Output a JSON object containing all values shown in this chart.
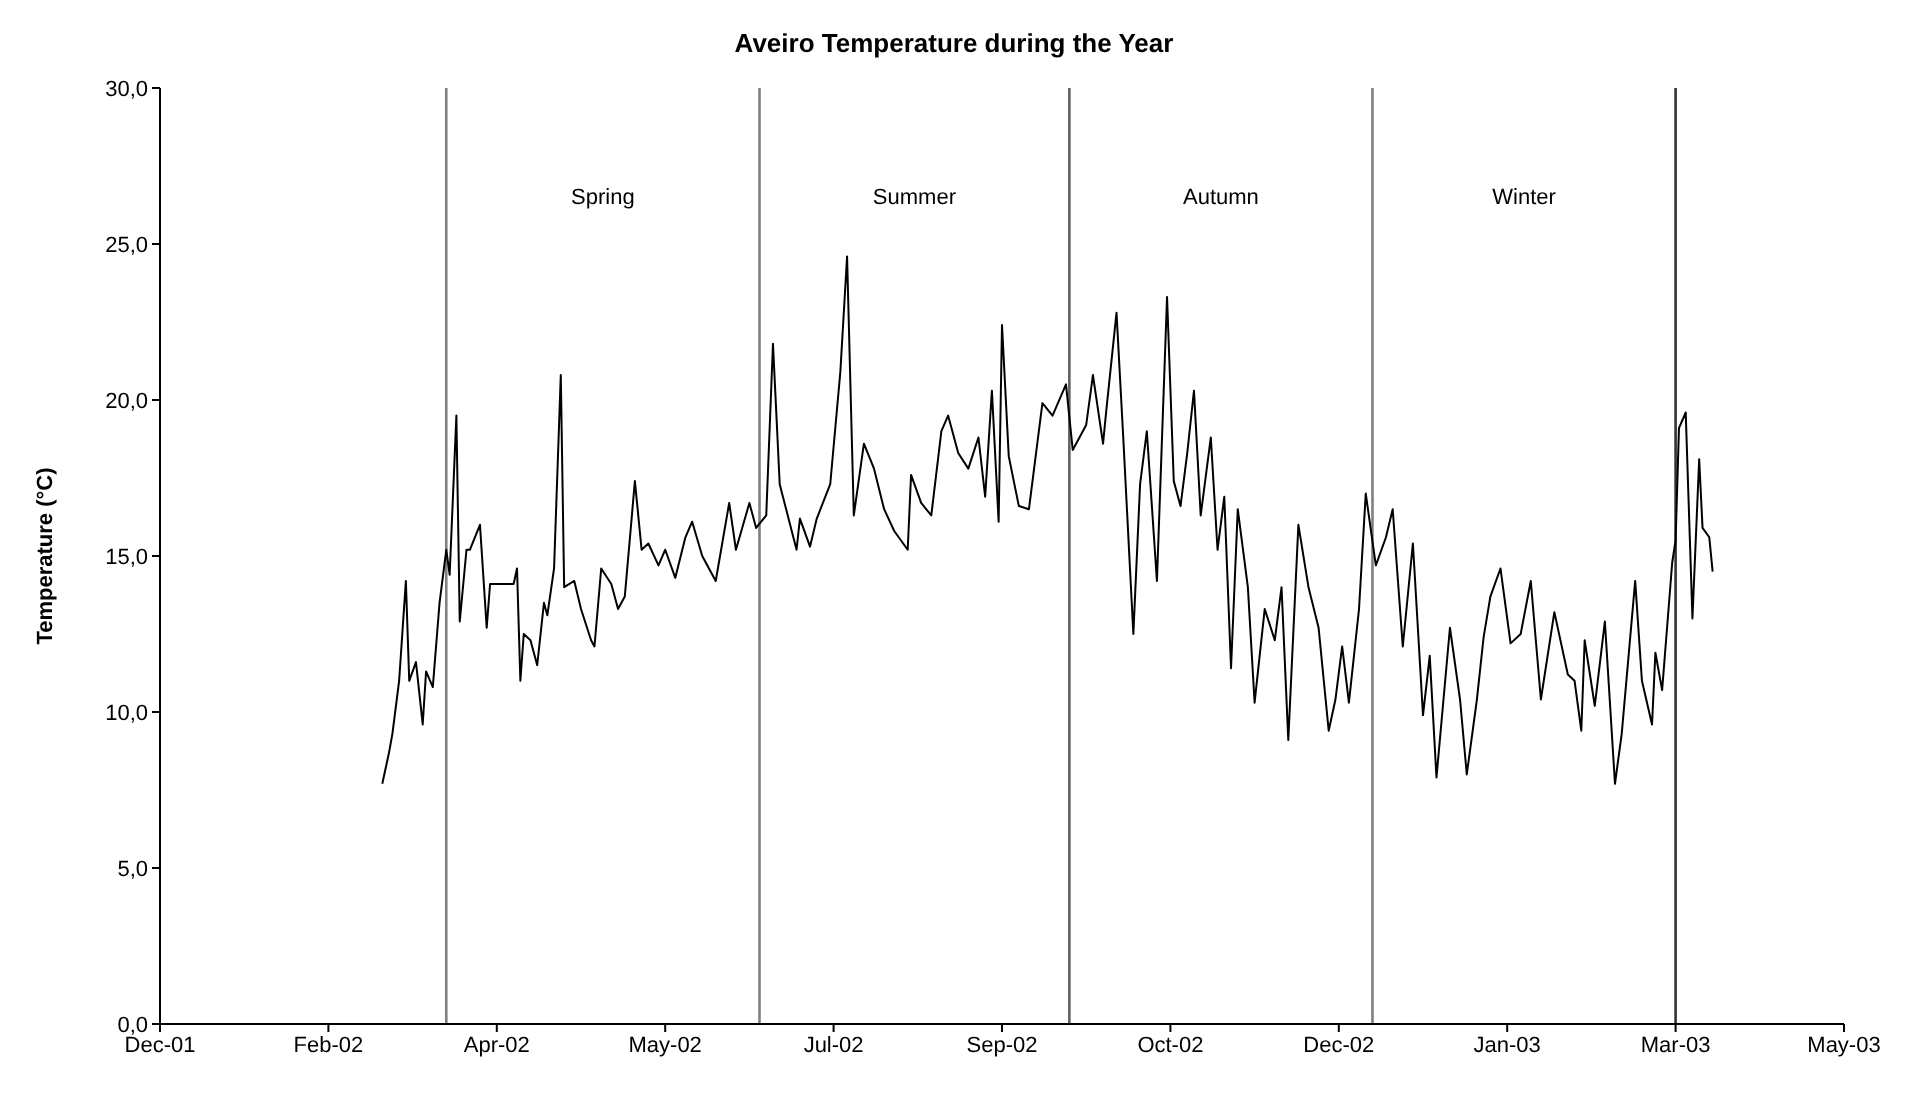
{
  "chart_data": {
    "type": "line",
    "title": "Aveiro Temperature during the Year",
    "ylabel": "Temperature (°C)",
    "x": [
      "2002-03-02",
      "2002-03-04",
      "2002-03-05",
      "2002-03-07",
      "2002-03-09",
      "2002-03-10",
      "2002-03-12",
      "2002-03-14",
      "2002-03-15",
      "2002-03-17",
      "2002-03-19",
      "2002-03-21",
      "2002-03-22",
      "2002-03-24",
      "2002-03-25",
      "2002-03-27",
      "2002-03-28",
      "2002-03-31",
      "2002-04-02",
      "2002-04-03",
      "2002-04-10",
      "2002-04-11",
      "2002-04-12",
      "2002-04-13",
      "2002-04-15",
      "2002-04-17",
      "2002-04-19",
      "2002-04-20",
      "2002-04-22",
      "2002-04-24",
      "2002-04-25",
      "2002-04-28",
      "2002-04-30",
      "2002-05-03",
      "2002-05-04",
      "2002-05-06",
      "2002-05-09",
      "2002-05-11",
      "2002-05-13",
      "2002-05-16",
      "2002-05-18",
      "2002-05-20",
      "2002-05-23",
      "2002-05-25",
      "2002-05-28",
      "2002-05-31",
      "2002-06-02",
      "2002-06-05",
      "2002-06-09",
      "2002-06-13",
      "2002-06-15",
      "2002-06-19",
      "2002-06-21",
      "2002-06-24",
      "2002-06-26",
      "2002-06-28",
      "2002-07-03",
      "2002-07-04",
      "2002-07-07",
      "2002-07-09",
      "2002-07-13",
      "2002-07-16",
      "2002-07-18",
      "2002-07-20",
      "2002-07-23",
      "2002-07-26",
      "2002-07-29",
      "2002-08-01",
      "2002-08-05",
      "2002-08-06",
      "2002-08-09",
      "2002-08-12",
      "2002-08-15",
      "2002-08-17",
      "2002-08-20",
      "2002-08-23",
      "2002-08-26",
      "2002-08-28",
      "2002-08-30",
      "2002-09-01",
      "2002-09-02",
      "2002-09-04",
      "2002-09-07",
      "2002-09-10",
      "2002-09-12",
      "2002-09-14",
      "2002-09-17",
      "2002-09-21",
      "2002-09-23",
      "2002-09-27",
      "2002-09-29",
      "2002-10-02",
      "2002-10-03",
      "2002-10-06",
      "2002-10-08",
      "2002-10-11",
      "2002-10-13",
      "2002-10-15",
      "2002-10-18",
      "2002-10-21",
      "2002-10-23",
      "2002-10-25",
      "2002-10-27",
      "2002-10-29",
      "2002-10-31",
      "2002-11-03",
      "2002-11-05",
      "2002-11-07",
      "2002-11-09",
      "2002-11-11",
      "2002-11-14",
      "2002-11-16",
      "2002-11-19",
      "2002-11-22",
      "2002-11-24",
      "2002-11-26",
      "2002-11-29",
      "2002-12-02",
      "2002-12-05",
      "2002-12-08",
      "2002-12-10",
      "2002-12-12",
      "2002-12-14",
      "2002-12-17",
      "2002-12-19",
      "2002-12-22",
      "2002-12-25",
      "2002-12-27",
      "2002-12-30",
      "2003-01-02",
      "2003-01-05",
      "2003-01-07",
      "2003-01-09",
      "2003-01-13",
      "2003-01-16",
      "2003-01-18",
      "2003-01-21",
      "2003-01-23",
      "2003-01-25",
      "2003-01-28",
      "2003-01-31",
      "2003-02-03",
      "2003-02-06",
      "2003-02-09",
      "2003-02-13",
      "2003-02-17",
      "2003-02-19",
      "2003-02-21",
      "2003-02-22",
      "2003-02-25",
      "2003-02-28",
      "2003-03-03",
      "2003-03-05",
      "2003-03-09",
      "2003-03-11",
      "2003-03-14",
      "2003-03-15",
      "2003-03-17",
      "2003-03-20",
      "2003-03-21",
      "2003-03-22",
      "2003-03-24",
      "2003-03-26",
      "2003-03-28",
      "2003-03-29",
      "2003-03-31",
      "2003-04-01"
    ],
    "series": [
      {
        "color": "#000000",
        "values": [
          7.7,
          8.7,
          9.3,
          11.0,
          14.2,
          11.0,
          11.6,
          9.6,
          11.3,
          10.8,
          13.5,
          15.2,
          14.4,
          19.5,
          12.9,
          15.2,
          15.2,
          16.0,
          12.7,
          14.1,
          14.1,
          14.6,
          11.0,
          12.5,
          12.3,
          11.5,
          13.5,
          13.1,
          14.6,
          20.8,
          14.0,
          14.2,
          13.3,
          12.3,
          12.1,
          14.6,
          14.1,
          13.3,
          13.7,
          17.4,
          15.2,
          15.4,
          14.7,
          15.2,
          14.3,
          15.6,
          16.1,
          15.0,
          14.2,
          16.7,
          15.2,
          16.7,
          15.9,
          16.3,
          21.8,
          17.3,
          15.2,
          16.2,
          15.3,
          16.2,
          17.3,
          20.9,
          24.6,
          16.3,
          18.6,
          17.8,
          16.5,
          15.8,
          15.2,
          17.6,
          16.7,
          16.3,
          19.0,
          19.5,
          18.3,
          17.8,
          18.8,
          16.9,
          20.3,
          16.1,
          22.4,
          18.2,
          16.6,
          16.5,
          18.2,
          19.9,
          19.5,
          20.5,
          18.4,
          19.2,
          20.8,
          18.6,
          19.7,
          22.8,
          18.8,
          12.5,
          17.3,
          19.0,
          14.2,
          23.3,
          17.4,
          16.6,
          18.3,
          20.3,
          16.3,
          18.8,
          15.2,
          16.9,
          11.4,
          16.5,
          14.0,
          10.3,
          13.3,
          12.3,
          14.0,
          9.1,
          16.0,
          14.0,
          12.7,
          9.4,
          10.4,
          12.1,
          10.3,
          13.3,
          17.0,
          14.7,
          15.6,
          16.5,
          12.1,
          15.4,
          9.9,
          11.8,
          7.9,
          12.7,
          10.4,
          8.0,
          10.4,
          12.4,
          13.7,
          14.6,
          12.2,
          12.5,
          14.2,
          10.4,
          13.2,
          11.2,
          11.0,
          9.4,
          12.3,
          10.2,
          12.9,
          7.7,
          9.3,
          14.2,
          11.0,
          9.6,
          11.9,
          10.7,
          14.8,
          15.5,
          19.1,
          19.6,
          13.0,
          18.1,
          15.9,
          15.6,
          14.5
        ]
      }
    ],
    "xlim": [
      "2001-12-26",
      "2003-05-10"
    ],
    "xticks": [
      {
        "value": "2001-12-26",
        "label": "Dec-01"
      },
      {
        "value": "2002-02-14",
        "label": "Feb-02"
      },
      {
        "value": "2002-04-05",
        "label": "Apr-02"
      },
      {
        "value": "2002-05-25",
        "label": "May-02"
      },
      {
        "value": "2002-07-14",
        "label": "Jul-02"
      },
      {
        "value": "2002-09-02",
        "label": "Sep-02"
      },
      {
        "value": "2002-10-22",
        "label": "Oct-02"
      },
      {
        "value": "2002-12-11",
        "label": "Dec-02"
      },
      {
        "value": "2003-01-30",
        "label": "Jan-03"
      },
      {
        "value": "2003-03-21",
        "label": "Mar-03"
      },
      {
        "value": "2003-05-10",
        "label": "May-03"
      }
    ],
    "ylim": [
      0,
      30
    ],
    "yticks": [
      {
        "value": 0,
        "label": "0,0"
      },
      {
        "value": 5,
        "label": "5,0"
      },
      {
        "value": 10,
        "label": "10,0"
      },
      {
        "value": 15,
        "label": "15,0"
      },
      {
        "value": 20,
        "label": "20,0"
      },
      {
        "value": 25,
        "label": "25,0"
      },
      {
        "value": 30,
        "label": "30,0"
      }
    ],
    "ref_lines": [
      {
        "axis": "x",
        "value": "2002-03-21",
        "color": "#808080"
      },
      {
        "axis": "x",
        "value": "2002-06-22",
        "color": "#808080"
      },
      {
        "axis": "x",
        "value": "2002-09-22",
        "color": "#606060"
      },
      {
        "axis": "x",
        "value": "2002-12-21",
        "color": "#808080"
      },
      {
        "axis": "x",
        "value": "2003-03-21",
        "color": "#333333"
      }
    ],
    "annotations": [
      "Spring",
      "Summer",
      "Autumn",
      "Winter"
    ],
    "grid": false,
    "legend": false,
    "marker": "none",
    "line_style": "solid"
  }
}
